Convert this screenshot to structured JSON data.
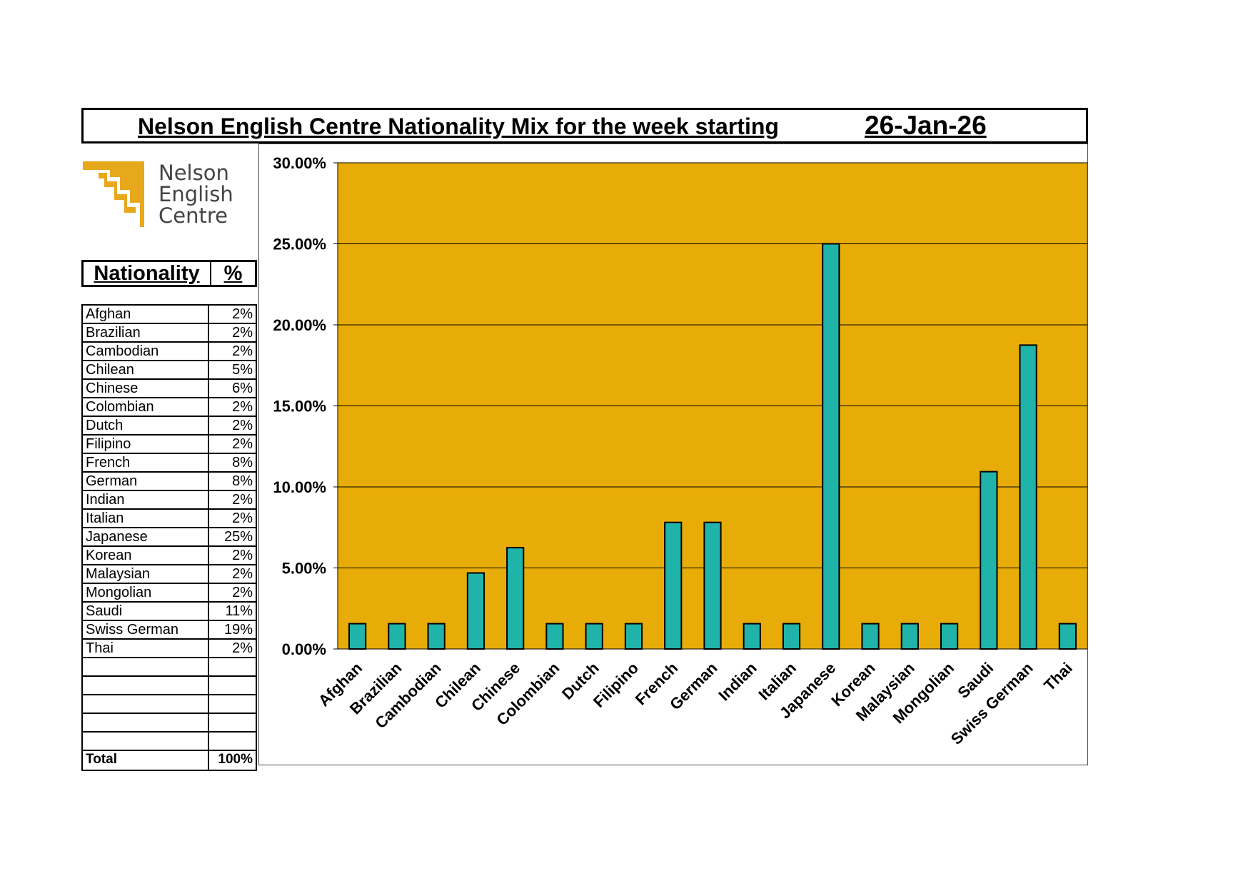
{
  "header": {
    "title": "Nelson English Centre Nationality Mix for the week starting",
    "date": "26-Jan-26"
  },
  "logo": {
    "line1": "Nelson",
    "line2": "English",
    "line3": "Centre",
    "color": "#e8a81c"
  },
  "table": {
    "col_nationality": "Nationality",
    "col_percent": "%",
    "rows": [
      {
        "name": "Afghan",
        "pct": "2%"
      },
      {
        "name": "Brazilian",
        "pct": "2%"
      },
      {
        "name": "Cambodian",
        "pct": "2%"
      },
      {
        "name": "Chilean",
        "pct": "5%"
      },
      {
        "name": "Chinese",
        "pct": "6%"
      },
      {
        "name": "Colombian",
        "pct": "2%"
      },
      {
        "name": "Dutch",
        "pct": "2%"
      },
      {
        "name": "Filipino",
        "pct": "2%"
      },
      {
        "name": "French",
        "pct": "8%"
      },
      {
        "name": "German",
        "pct": "8%"
      },
      {
        "name": "Indian",
        "pct": "2%"
      },
      {
        "name": "Italian",
        "pct": "2%"
      },
      {
        "name": "Japanese",
        "pct": "25%"
      },
      {
        "name": "Korean",
        "pct": "2%"
      },
      {
        "name": "Malaysian",
        "pct": "2%"
      },
      {
        "name": "Mongolian",
        "pct": "2%"
      },
      {
        "name": "Saudi",
        "pct": "11%"
      },
      {
        "name": "Swiss German",
        "pct": "19%"
      },
      {
        "name": "Thai",
        "pct": "2%"
      }
    ],
    "empty_rows": 5,
    "total_label": "Total",
    "total_value": "100%"
  },
  "chart_data": {
    "type": "bar",
    "title": "",
    "xlabel": "",
    "ylabel": "",
    "categories": [
      "Afghan",
      "Brazilian",
      "Cambodian",
      "Chilean",
      "Chinese",
      "Colombian",
      "Dutch",
      "Filipino",
      "French",
      "German",
      "Indian",
      "Italian",
      "Japanese",
      "Korean",
      "Malaysian",
      "Mongolian",
      "Saudi",
      "Swiss German",
      "Thai"
    ],
    "values": [
      1.56,
      1.56,
      1.56,
      4.69,
      6.25,
      1.56,
      1.56,
      1.56,
      7.81,
      7.81,
      1.56,
      1.56,
      25.0,
      1.56,
      1.56,
      1.56,
      10.94,
      18.75,
      1.56
    ],
    "ylim": [
      0,
      30
    ],
    "yticks": [
      "0.00%",
      "5.00%",
      "10.00%",
      "15.00%",
      "20.00%",
      "25.00%",
      "30.00%"
    ],
    "grid": true,
    "legend": "none",
    "colors": {
      "plot_background": "#e8ac08",
      "bar": "#1fb3aa",
      "bar_edge": "#000000"
    }
  }
}
